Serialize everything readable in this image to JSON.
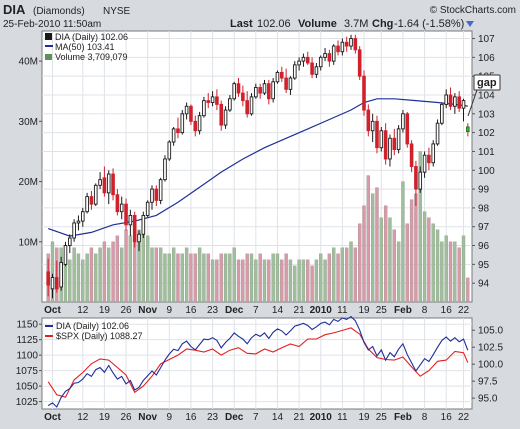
{
  "header": {
    "symbol": "DIA",
    "name": "(Diamonds)",
    "exchange": "NYSE",
    "datetime": "25-Feb-2010 11:50am",
    "watermark": "© StockCharts.com",
    "last_label": "Last",
    "last_value": "102.06",
    "volume_label": "Volume",
    "volume_value": "3.7M",
    "chg_label": "Chg",
    "chg_value": "-1.64 (-1.58%)"
  },
  "colors": {
    "up": "#1a1a1a",
    "down": "#d0202c",
    "ma": "#1f2f99",
    "vol_up": "#9fbf9a",
    "vol_down": "#d89aa8",
    "spx": "#e22020",
    "background": "#ffffff",
    "frame": "#d7dbe0"
  },
  "annotation": {
    "text": "gap"
  },
  "chart_data": [
    {
      "type": "candlestick",
      "title": "DIA (Daily) 102.06",
      "legend": [
        {
          "key": "price",
          "text": "DIA (Daily) 102.06"
        },
        {
          "key": "ma",
          "text": "MA(50) 103.41"
        },
        {
          "key": "volume",
          "text": "Volume 3,709,079"
        }
      ],
      "y_ticks": [
        94,
        95,
        96,
        97,
        98,
        99,
        100,
        101,
        102,
        103,
        104,
        105,
        106,
        107
      ],
      "ylim": [
        93.0,
        107.4
      ],
      "volume_ticks": [
        {
          "value": 10,
          "label": "10M"
        },
        {
          "value": 20,
          "label": "20M"
        },
        {
          "value": 30,
          "label": "30M"
        },
        {
          "value": 40,
          "label": "40M"
        }
      ],
      "volume_max": 45,
      "x_ticks": [
        {
          "i": 1,
          "label": "Oct",
          "bold": true
        },
        {
          "i": 8,
          "label": "12"
        },
        {
          "i": 13,
          "label": "19"
        },
        {
          "i": 18,
          "label": "26"
        },
        {
          "i": 23,
          "label": "Nov",
          "bold": true
        },
        {
          "i": 28,
          "label": "9"
        },
        {
          "i": 33,
          "label": "16"
        },
        {
          "i": 38,
          "label": "23"
        },
        {
          "i": 43,
          "label": "Dec",
          "bold": true
        },
        {
          "i": 48,
          "label": "7"
        },
        {
          "i": 53,
          "label": "14"
        },
        {
          "i": 58,
          "label": "21"
        },
        {
          "i": 63,
          "label": "2010",
          "bold": true
        },
        {
          "i": 68,
          "label": "11"
        },
        {
          "i": 73,
          "label": "19"
        },
        {
          "i": 77,
          "label": "25"
        },
        {
          "i": 82,
          "label": "Feb",
          "bold": true
        },
        {
          "i": 87,
          "label": "8"
        },
        {
          "i": 92,
          "label": "16"
        },
        {
          "i": 96,
          "label": "22"
        }
      ],
      "candles": [
        {
          "o": 94.6,
          "h": 95.3,
          "l": 93.3,
          "c": 93.9
        },
        {
          "o": 93.7,
          "h": 94.5,
          "l": 93.2,
          "c": 94.3
        },
        {
          "o": 94.3,
          "h": 95.2,
          "l": 93.5,
          "c": 93.7
        },
        {
          "o": 93.8,
          "h": 95.4,
          "l": 93.6,
          "c": 95.1
        },
        {
          "o": 95.0,
          "h": 96.2,
          "l": 94.9,
          "c": 96.0
        },
        {
          "o": 96.0,
          "h": 96.6,
          "l": 95.6,
          "c": 96.4
        },
        {
          "o": 96.4,
          "h": 97.4,
          "l": 96.2,
          "c": 97.2
        },
        {
          "o": 97.2,
          "h": 97.6,
          "l": 96.8,
          "c": 97.3
        },
        {
          "o": 97.3,
          "h": 98.0,
          "l": 97.0,
          "c": 97.8
        },
        {
          "o": 97.8,
          "h": 98.8,
          "l": 97.7,
          "c": 98.6
        },
        {
          "o": 98.6,
          "h": 98.9,
          "l": 97.9,
          "c": 98.2
        },
        {
          "o": 98.2,
          "h": 99.3,
          "l": 98.1,
          "c": 99.2
        },
        {
          "o": 99.2,
          "h": 99.9,
          "l": 99.0,
          "c": 99.5
        },
        {
          "o": 99.6,
          "h": 100.2,
          "l": 98.6,
          "c": 98.8
        },
        {
          "o": 98.8,
          "h": 100.0,
          "l": 98.2,
          "c": 99.8
        },
        {
          "o": 99.8,
          "h": 100.1,
          "l": 98.4,
          "c": 98.7
        },
        {
          "o": 98.7,
          "h": 99.0,
          "l": 97.6,
          "c": 97.8
        },
        {
          "o": 97.8,
          "h": 98.6,
          "l": 97.4,
          "c": 98.2
        },
        {
          "o": 98.2,
          "h": 98.5,
          "l": 96.8,
          "c": 97.1
        },
        {
          "o": 97.1,
          "h": 97.9,
          "l": 96.5,
          "c": 97.6
        },
        {
          "o": 97.6,
          "h": 97.8,
          "l": 95.9,
          "c": 96.2
        },
        {
          "o": 96.2,
          "h": 96.8,
          "l": 95.7,
          "c": 96.6
        },
        {
          "o": 96.6,
          "h": 97.8,
          "l": 96.4,
          "c": 97.6
        },
        {
          "o": 97.6,
          "h": 98.4,
          "l": 97.5,
          "c": 98.3
        },
        {
          "o": 98.3,
          "h": 99.2,
          "l": 97.9,
          "c": 99.0
        },
        {
          "o": 99.0,
          "h": 99.2,
          "l": 98.1,
          "c": 98.4
        },
        {
          "o": 98.4,
          "h": 99.6,
          "l": 98.2,
          "c": 99.5
        },
        {
          "o": 99.5,
          "h": 100.8,
          "l": 99.4,
          "c": 100.6
        },
        {
          "o": 100.6,
          "h": 101.6,
          "l": 100.5,
          "c": 101.5
        },
        {
          "o": 101.5,
          "h": 102.3,
          "l": 101.3,
          "c": 102.2
        },
        {
          "o": 102.2,
          "h": 102.8,
          "l": 101.7,
          "c": 102.0
        },
        {
          "o": 102.0,
          "h": 103.2,
          "l": 101.9,
          "c": 103.0
        },
        {
          "o": 103.0,
          "h": 103.6,
          "l": 102.7,
          "c": 103.4
        },
        {
          "o": 103.4,
          "h": 103.5,
          "l": 102.4,
          "c": 102.6
        },
        {
          "o": 102.6,
          "h": 102.9,
          "l": 101.8,
          "c": 102.1
        },
        {
          "o": 102.1,
          "h": 103.1,
          "l": 101.9,
          "c": 102.9
        },
        {
          "o": 102.9,
          "h": 103.9,
          "l": 102.8,
          "c": 103.7
        },
        {
          "o": 103.7,
          "h": 104.1,
          "l": 103.3,
          "c": 103.6
        },
        {
          "o": 103.6,
          "h": 104.2,
          "l": 103.4,
          "c": 103.9
        },
        {
          "o": 103.9,
          "h": 104.3,
          "l": 103.2,
          "c": 103.5
        },
        {
          "o": 103.5,
          "h": 103.7,
          "l": 102.1,
          "c": 102.4
        },
        {
          "o": 102.4,
          "h": 103.4,
          "l": 102.2,
          "c": 103.2
        },
        {
          "o": 103.2,
          "h": 104.0,
          "l": 103.1,
          "c": 103.8
        },
        {
          "o": 103.8,
          "h": 104.7,
          "l": 103.7,
          "c": 104.6
        },
        {
          "o": 104.6,
          "h": 104.9,
          "l": 103.9,
          "c": 104.1
        },
        {
          "o": 104.1,
          "h": 104.5,
          "l": 103.4,
          "c": 103.7
        },
        {
          "o": 103.7,
          "h": 104.2,
          "l": 102.8,
          "c": 103.0
        },
        {
          "o": 103.0,
          "h": 104.1,
          "l": 102.9,
          "c": 103.9
        },
        {
          "o": 103.9,
          "h": 104.6,
          "l": 103.8,
          "c": 104.4
        },
        {
          "o": 104.4,
          "h": 104.6,
          "l": 103.8,
          "c": 104.1
        },
        {
          "o": 104.1,
          "h": 104.8,
          "l": 104.0,
          "c": 104.6
        },
        {
          "o": 104.6,
          "h": 104.8,
          "l": 103.5,
          "c": 103.8
        },
        {
          "o": 103.8,
          "h": 104.9,
          "l": 103.6,
          "c": 104.7
        },
        {
          "o": 104.7,
          "h": 105.3,
          "l": 104.6,
          "c": 105.2
        },
        {
          "o": 105.2,
          "h": 105.5,
          "l": 104.7,
          "c": 104.9
        },
        {
          "o": 104.9,
          "h": 105.4,
          "l": 104.1,
          "c": 104.3
        },
        {
          "o": 104.3,
          "h": 105.0,
          "l": 104.0,
          "c": 104.9
        },
        {
          "o": 104.9,
          "h": 105.8,
          "l": 104.8,
          "c": 105.6
        },
        {
          "o": 105.6,
          "h": 106.0,
          "l": 105.3,
          "c": 105.8
        },
        {
          "o": 105.8,
          "h": 106.2,
          "l": 105.5,
          "c": 106.0
        },
        {
          "o": 106.0,
          "h": 106.3,
          "l": 105.6,
          "c": 105.7
        },
        {
          "o": 105.7,
          "h": 106.0,
          "l": 104.9,
          "c": 105.1
        },
        {
          "o": 105.1,
          "h": 105.7,
          "l": 104.9,
          "c": 105.5
        },
        {
          "o": 105.5,
          "h": 106.1,
          "l": 105.3,
          "c": 106.0
        },
        {
          "o": 106.0,
          "h": 106.5,
          "l": 105.8,
          "c": 106.2
        },
        {
          "o": 106.2,
          "h": 106.4,
          "l": 105.5,
          "c": 105.8
        },
        {
          "o": 105.8,
          "h": 106.7,
          "l": 105.6,
          "c": 106.6
        },
        {
          "o": 106.6,
          "h": 106.9,
          "l": 106.1,
          "c": 106.3
        },
        {
          "o": 106.3,
          "h": 107.0,
          "l": 106.1,
          "c": 106.8
        },
        {
          "o": 106.8,
          "h": 107.1,
          "l": 106.3,
          "c": 106.6
        },
        {
          "o": 106.6,
          "h": 107.2,
          "l": 106.4,
          "c": 107.0
        },
        {
          "o": 107.0,
          "h": 107.2,
          "l": 106.2,
          "c": 106.4
        },
        {
          "o": 106.4,
          "h": 106.6,
          "l": 104.8,
          "c": 105.0
        },
        {
          "o": 105.0,
          "h": 105.3,
          "l": 102.9,
          "c": 103.2
        },
        {
          "o": 103.2,
          "h": 103.5,
          "l": 101.8,
          "c": 102.1
        },
        {
          "o": 102.1,
          "h": 103.0,
          "l": 101.5,
          "c": 102.6
        },
        {
          "o": 102.6,
          "h": 102.9,
          "l": 100.9,
          "c": 101.2
        },
        {
          "o": 101.2,
          "h": 102.3,
          "l": 101.0,
          "c": 102.1
        },
        {
          "o": 102.1,
          "h": 102.5,
          "l": 100.3,
          "c": 100.6
        },
        {
          "o": 100.6,
          "h": 101.9,
          "l": 100.2,
          "c": 101.7
        },
        {
          "o": 101.7,
          "h": 102.2,
          "l": 100.8,
          "c": 101.1
        },
        {
          "o": 101.1,
          "h": 102.4,
          "l": 100.9,
          "c": 102.2
        },
        {
          "o": 102.2,
          "h": 103.2,
          "l": 102.0,
          "c": 103.0
        },
        {
          "o": 103.0,
          "h": 103.1,
          "l": 101.2,
          "c": 101.4
        },
        {
          "o": 101.4,
          "h": 101.6,
          "l": 99.9,
          "c": 100.2
        },
        {
          "o": 100.2,
          "h": 100.5,
          "l": 98.1,
          "c": 99.0
        },
        {
          "o": 99.0,
          "h": 100.2,
          "l": 98.8,
          "c": 99.9
        },
        {
          "o": 99.9,
          "h": 101.0,
          "l": 99.6,
          "c": 100.8
        },
        {
          "o": 100.8,
          "h": 101.2,
          "l": 100.0,
          "c": 100.4
        },
        {
          "o": 100.4,
          "h": 101.6,
          "l": 100.2,
          "c": 101.4
        },
        {
          "o": 101.4,
          "h": 102.7,
          "l": 101.3,
          "c": 102.5
        },
        {
          "o": 102.5,
          "h": 103.6,
          "l": 102.4,
          "c": 103.5
        },
        {
          "o": 103.5,
          "h": 104.3,
          "l": 103.3,
          "c": 104.0
        },
        {
          "o": 104.0,
          "h": 104.4,
          "l": 103.2,
          "c": 103.4
        },
        {
          "o": 103.4,
          "h": 104.1,
          "l": 103.0,
          "c": 103.9
        },
        {
          "o": 103.9,
          "h": 104.2,
          "l": 103.1,
          "c": 103.3
        },
        {
          "o": 103.3,
          "h": 103.8,
          "l": 102.6,
          "c": 103.7
        },
        {
          "o": 102.3,
          "h": 102.5,
          "l": 101.8,
          "c": 102.06
        }
      ],
      "ma50": [
        [
          0,
          96.9
        ],
        [
          5,
          96.5
        ],
        [
          10,
          96.7
        ],
        [
          15,
          97.1
        ],
        [
          20,
          97.3
        ],
        [
          25,
          97.6
        ],
        [
          30,
          98.3
        ],
        [
          35,
          99.1
        ],
        [
          40,
          99.9
        ],
        [
          45,
          100.6
        ],
        [
          50,
          101.2
        ],
        [
          55,
          101.7
        ],
        [
          60,
          102.2
        ],
        [
          65,
          102.7
        ],
        [
          70,
          103.2
        ],
        [
          73,
          103.6
        ],
        [
          76,
          103.8
        ],
        [
          80,
          103.8
        ],
        [
          85,
          103.7
        ],
        [
          90,
          103.6
        ],
        [
          94,
          103.5
        ],
        [
          97,
          103.41
        ]
      ],
      "volume": [
        8,
        10,
        9,
        9,
        8,
        7,
        9,
        8,
        7,
        8,
        9,
        8,
        9,
        10,
        9,
        10,
        11,
        9,
        12,
        11,
        13,
        12,
        14,
        11,
        9,
        9,
        9,
        8,
        8,
        9,
        8,
        8,
        9,
        8,
        8,
        9,
        8,
        8,
        7,
        7,
        8,
        8,
        8,
        9,
        7,
        7,
        8,
        8,
        7,
        8,
        7,
        7,
        8,
        8,
        7,
        8,
        7,
        6,
        7,
        7,
        7,
        6,
        7,
        8,
        7,
        8,
        9,
        8,
        9,
        9,
        10,
        9,
        13,
        16,
        21,
        18,
        19,
        14,
        16,
        14,
        12,
        10,
        20,
        13,
        17,
        18,
        25,
        15,
        14,
        13,
        12,
        10,
        11,
        10,
        10,
        9,
        11,
        4
      ]
    },
    {
      "type": "line",
      "title": "DIA (Daily) 102.06",
      "series": [
        {
          "name": "DIA (Daily) 102.06",
          "color": "#1f2f99"
        },
        {
          "name": "$SPX (Daily) 1088.27",
          "color": "#e22020"
        }
      ],
      "y_left_ticks": [
        1025,
        1050,
        1075,
        1100,
        1125,
        1150
      ],
      "y_left_lim": [
        1013,
        1160
      ],
      "y_right_ticks": [
        {
          "value": 95.0,
          "label": "95.0"
        },
        {
          "value": 97.5,
          "label": "97.5"
        },
        {
          "value": 100.0,
          "label": "100.0"
        },
        {
          "value": 102.5,
          "label": "102.5"
        },
        {
          "value": 105.0,
          "label": "105.0"
        }
      ],
      "y_right_lim": [
        93.4,
        106.8
      ],
      "spx": [
        [
          0,
          1057
        ],
        [
          2,
          1036
        ],
        [
          4,
          1032
        ],
        [
          6,
          1060
        ],
        [
          8,
          1072
        ],
        [
          10,
          1086
        ],
        [
          12,
          1094
        ],
        [
          14,
          1092
        ],
        [
          16,
          1080
        ],
        [
          18,
          1068
        ],
        [
          20,
          1040
        ],
        [
          22,
          1050
        ],
        [
          24,
          1066
        ],
        [
          26,
          1086
        ],
        [
          28,
          1093
        ],
        [
          30,
          1100
        ],
        [
          32,
          1110
        ],
        [
          34,
          1108
        ],
        [
          36,
          1105
        ],
        [
          38,
          1110
        ],
        [
          40,
          1100
        ],
        [
          42,
          1108
        ],
        [
          44,
          1112
        ],
        [
          46,
          1103
        ],
        [
          48,
          1102
        ],
        [
          50,
          1110
        ],
        [
          52,
          1105
        ],
        [
          54,
          1112
        ],
        [
          56,
          1118
        ],
        [
          58,
          1114
        ],
        [
          60,
          1126
        ],
        [
          62,
          1126
        ],
        [
          64,
          1133
        ],
        [
          66,
          1136
        ],
        [
          68,
          1140
        ],
        [
          70,
          1144
        ],
        [
          72,
          1134
        ],
        [
          74,
          1110
        ],
        [
          76,
          1096
        ],
        [
          78,
          1093
        ],
        [
          80,
          1092
        ],
        [
          82,
          1097
        ],
        [
          84,
          1081
        ],
        [
          86,
          1066
        ],
        [
          88,
          1075
        ],
        [
          90,
          1090
        ],
        [
          92,
          1092
        ],
        [
          94,
          1106
        ],
        [
          96,
          1104
        ],
        [
          97,
          1088
        ]
      ]
    }
  ]
}
